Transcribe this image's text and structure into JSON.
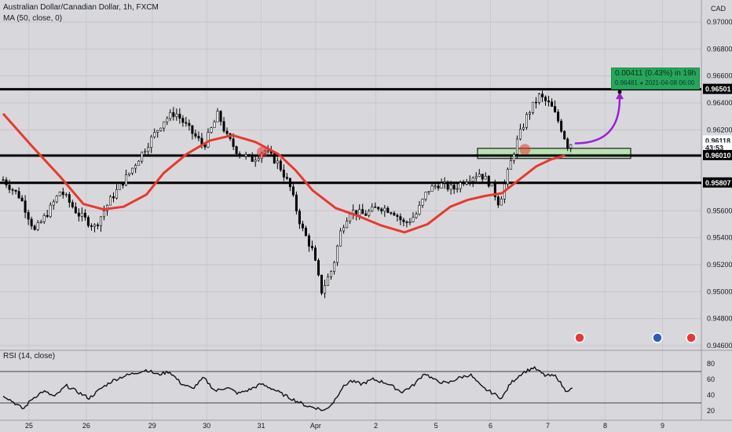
{
  "header": {
    "title": "Australian Dollar/Canadian Dollar, 1h, FXCM",
    "indicator": "MA (50, close, 0)",
    "currency": "CAD"
  },
  "rsi_header": "RSI (14, close)",
  "projection": {
    "line1": "0.00411 (0.43%) in 19h",
    "price": "0.96481",
    "datetime": "2021-04-08 06:00"
  },
  "colors": {
    "background": "#d8d8dc",
    "ma_line": "#e8392f",
    "hline": "#000000",
    "zone_fill": "#b9e3b0",
    "arrow": "#9b1fd8",
    "projection_box": "#26a65b",
    "candle": "#000000"
  },
  "chart_data": [
    {
      "type": "candlestick",
      "title": "Australian Dollar/Canadian Dollar, 1h, FXCM",
      "ylim": [
        0.9455,
        0.9745
      ],
      "y_ticks": [
        "0.97000",
        "0.96800",
        "0.96600",
        "0.96400",
        "0.96200",
        "0.96000",
        "0.95800",
        "0.95600",
        "0.95400",
        "0.95200",
        "0.95000",
        "0.94800",
        "0.94600"
      ],
      "x_ticks": [
        "25",
        "26",
        "29",
        "30",
        "31",
        "Apr",
        "2",
        "5",
        "6",
        "7",
        "8",
        "9"
      ],
      "price_labels": [
        {
          "text": "0.96501",
          "value": 0.96501,
          "style": "line"
        },
        {
          "text": "0.96118",
          "value": 0.96118,
          "style": "current"
        },
        {
          "text": "43:53",
          "value": 0.96065,
          "style": "timer"
        },
        {
          "text": "0.96010",
          "value": 0.9601,
          "style": "line"
        },
        {
          "text": "0.95807",
          "value": 0.95807,
          "style": "line"
        }
      ],
      "horizontal_levels": [
        0.96501,
        0.9601,
        0.95807
      ],
      "support_zone": {
        "from": 0.95988,
        "to": 0.96063
      },
      "close_series": [
        {
          "x": 0,
          "y": 0.9583
        },
        {
          "x": 0.3,
          "y": 0.957
        },
        {
          "x": 0.55,
          "y": 0.9545
        },
        {
          "x": 0.8,
          "y": 0.956
        },
        {
          "x": 1.0,
          "y": 0.9575
        },
        {
          "x": 1.3,
          "y": 0.9558
        },
        {
          "x": 1.6,
          "y": 0.9548
        },
        {
          "x": 1.85,
          "y": 0.9567
        },
        {
          "x": 2.2,
          "y": 0.9588
        },
        {
          "x": 2.5,
          "y": 0.9608
        },
        {
          "x": 2.8,
          "y": 0.9627
        },
        {
          "x": 3.0,
          "y": 0.9633
        },
        {
          "x": 3.25,
          "y": 0.962
        },
        {
          "x": 3.5,
          "y": 0.9608
        },
        {
          "x": 3.75,
          "y": 0.9632
        },
        {
          "x": 3.9,
          "y": 0.9615
        },
        {
          "x": 4.1,
          "y": 0.9603
        },
        {
          "x": 4.35,
          "y": 0.9598
        },
        {
          "x": 4.55,
          "y": 0.9605
        },
        {
          "x": 4.8,
          "y": 0.9595
        },
        {
          "x": 5.0,
          "y": 0.9578
        },
        {
          "x": 5.2,
          "y": 0.9548
        },
        {
          "x": 5.4,
          "y": 0.953
        },
        {
          "x": 5.55,
          "y": 0.95
        },
        {
          "x": 5.75,
          "y": 0.9518
        },
        {
          "x": 5.9,
          "y": 0.9547
        },
        {
          "x": 6.05,
          "y": 0.956
        },
        {
          "x": 6.3,
          "y": 0.9557
        },
        {
          "x": 6.55,
          "y": 0.9563
        },
        {
          "x": 6.8,
          "y": 0.956
        },
        {
          "x": 7.0,
          "y": 0.955
        },
        {
          "x": 7.2,
          "y": 0.9557
        },
        {
          "x": 7.4,
          "y": 0.9575
        },
        {
          "x": 7.6,
          "y": 0.958
        },
        {
          "x": 7.85,
          "y": 0.9576
        },
        {
          "x": 8.05,
          "y": 0.9583
        },
        {
          "x": 8.3,
          "y": 0.9588
        },
        {
          "x": 8.5,
          "y": 0.958
        },
        {
          "x": 8.65,
          "y": 0.9565
        },
        {
          "x": 8.8,
          "y": 0.9588
        },
        {
          "x": 8.95,
          "y": 0.961
        },
        {
          "x": 9.15,
          "y": 0.9632
        },
        {
          "x": 9.35,
          "y": 0.9645
        },
        {
          "x": 9.55,
          "y": 0.9638
        },
        {
          "x": 9.7,
          "y": 0.9625
        },
        {
          "x": 9.85,
          "y": 0.9608
        },
        {
          "x": 9.95,
          "y": 0.9612
        }
      ],
      "ma_series": [
        {
          "x": 0,
          "y": 0.9632
        },
        {
          "x": 0.5,
          "y": 0.9608
        },
        {
          "x": 1.0,
          "y": 0.9585
        },
        {
          "x": 1.4,
          "y": 0.9565
        },
        {
          "x": 1.75,
          "y": 0.9561
        },
        {
          "x": 2.1,
          "y": 0.9563
        },
        {
          "x": 2.5,
          "y": 0.9572
        },
        {
          "x": 2.8,
          "y": 0.9588
        },
        {
          "x": 3.2,
          "y": 0.9602
        },
        {
          "x": 3.6,
          "y": 0.9612
        },
        {
          "x": 4.0,
          "y": 0.9616
        },
        {
          "x": 4.4,
          "y": 0.9611
        },
        {
          "x": 4.8,
          "y": 0.9602
        },
        {
          "x": 5.1,
          "y": 0.959
        },
        {
          "x": 5.4,
          "y": 0.9575
        },
        {
          "x": 5.8,
          "y": 0.9562
        },
        {
          "x": 6.2,
          "y": 0.9556
        },
        {
          "x": 6.6,
          "y": 0.9549
        },
        {
          "x": 7.0,
          "y": 0.9544
        },
        {
          "x": 7.4,
          "y": 0.955
        },
        {
          "x": 7.8,
          "y": 0.9563
        },
        {
          "x": 8.1,
          "y": 0.9568
        },
        {
          "x": 8.4,
          "y": 0.9571
        },
        {
          "x": 8.7,
          "y": 0.9573
        },
        {
          "x": 9.0,
          "y": 0.9583
        },
        {
          "x": 9.3,
          "y": 0.9593
        },
        {
          "x": 9.55,
          "y": 0.9598
        },
        {
          "x": 9.8,
          "y": 0.9601
        }
      ],
      "projection_target": {
        "x": 10.9,
        "y": 0.96481
      }
    },
    {
      "type": "line",
      "title": "RSI (14, close)",
      "ylim": [
        15,
        85
      ],
      "y_ticks": [
        "80",
        "60",
        "40",
        "20"
      ],
      "levels": [
        70,
        30
      ],
      "series": [
        {
          "x": 0,
          "y": 40
        },
        {
          "x": 0.2,
          "y": 30
        },
        {
          "x": 0.35,
          "y": 22
        },
        {
          "x": 0.5,
          "y": 35
        },
        {
          "x": 0.7,
          "y": 45
        },
        {
          "x": 0.9,
          "y": 38
        },
        {
          "x": 1.1,
          "y": 52
        },
        {
          "x": 1.3,
          "y": 44
        },
        {
          "x": 1.5,
          "y": 36
        },
        {
          "x": 1.7,
          "y": 48
        },
        {
          "x": 1.9,
          "y": 58
        },
        {
          "x": 2.1,
          "y": 64
        },
        {
          "x": 2.3,
          "y": 68
        },
        {
          "x": 2.5,
          "y": 72
        },
        {
          "x": 2.7,
          "y": 66
        },
        {
          "x": 2.9,
          "y": 70
        },
        {
          "x": 3.1,
          "y": 55
        },
        {
          "x": 3.3,
          "y": 48
        },
        {
          "x": 3.5,
          "y": 62
        },
        {
          "x": 3.7,
          "y": 45
        },
        {
          "x": 3.9,
          "y": 50
        },
        {
          "x": 4.1,
          "y": 42
        },
        {
          "x": 4.3,
          "y": 47
        },
        {
          "x": 4.5,
          "y": 54
        },
        {
          "x": 4.7,
          "y": 48
        },
        {
          "x": 4.9,
          "y": 40
        },
        {
          "x": 5.1,
          "y": 33
        },
        {
          "x": 5.3,
          "y": 26
        },
        {
          "x": 5.45,
          "y": 24
        },
        {
          "x": 5.6,
          "y": 20
        },
        {
          "x": 5.75,
          "y": 30
        },
        {
          "x": 5.9,
          "y": 48
        },
        {
          "x": 6.05,
          "y": 58
        },
        {
          "x": 6.25,
          "y": 54
        },
        {
          "x": 6.45,
          "y": 60
        },
        {
          "x": 6.7,
          "y": 55
        },
        {
          "x": 6.95,
          "y": 44
        },
        {
          "x": 7.15,
          "y": 52
        },
        {
          "x": 7.35,
          "y": 68
        },
        {
          "x": 7.55,
          "y": 58
        },
        {
          "x": 7.75,
          "y": 55
        },
        {
          "x": 7.95,
          "y": 62
        },
        {
          "x": 8.15,
          "y": 66
        },
        {
          "x": 8.35,
          "y": 50
        },
        {
          "x": 8.55,
          "y": 42
        },
        {
          "x": 8.7,
          "y": 36
        },
        {
          "x": 8.85,
          "y": 55
        },
        {
          "x": 9.05,
          "y": 68
        },
        {
          "x": 9.25,
          "y": 75
        },
        {
          "x": 9.45,
          "y": 65
        },
        {
          "x": 9.65,
          "y": 64
        },
        {
          "x": 9.8,
          "y": 46
        },
        {
          "x": 9.95,
          "y": 48
        }
      ]
    }
  ]
}
